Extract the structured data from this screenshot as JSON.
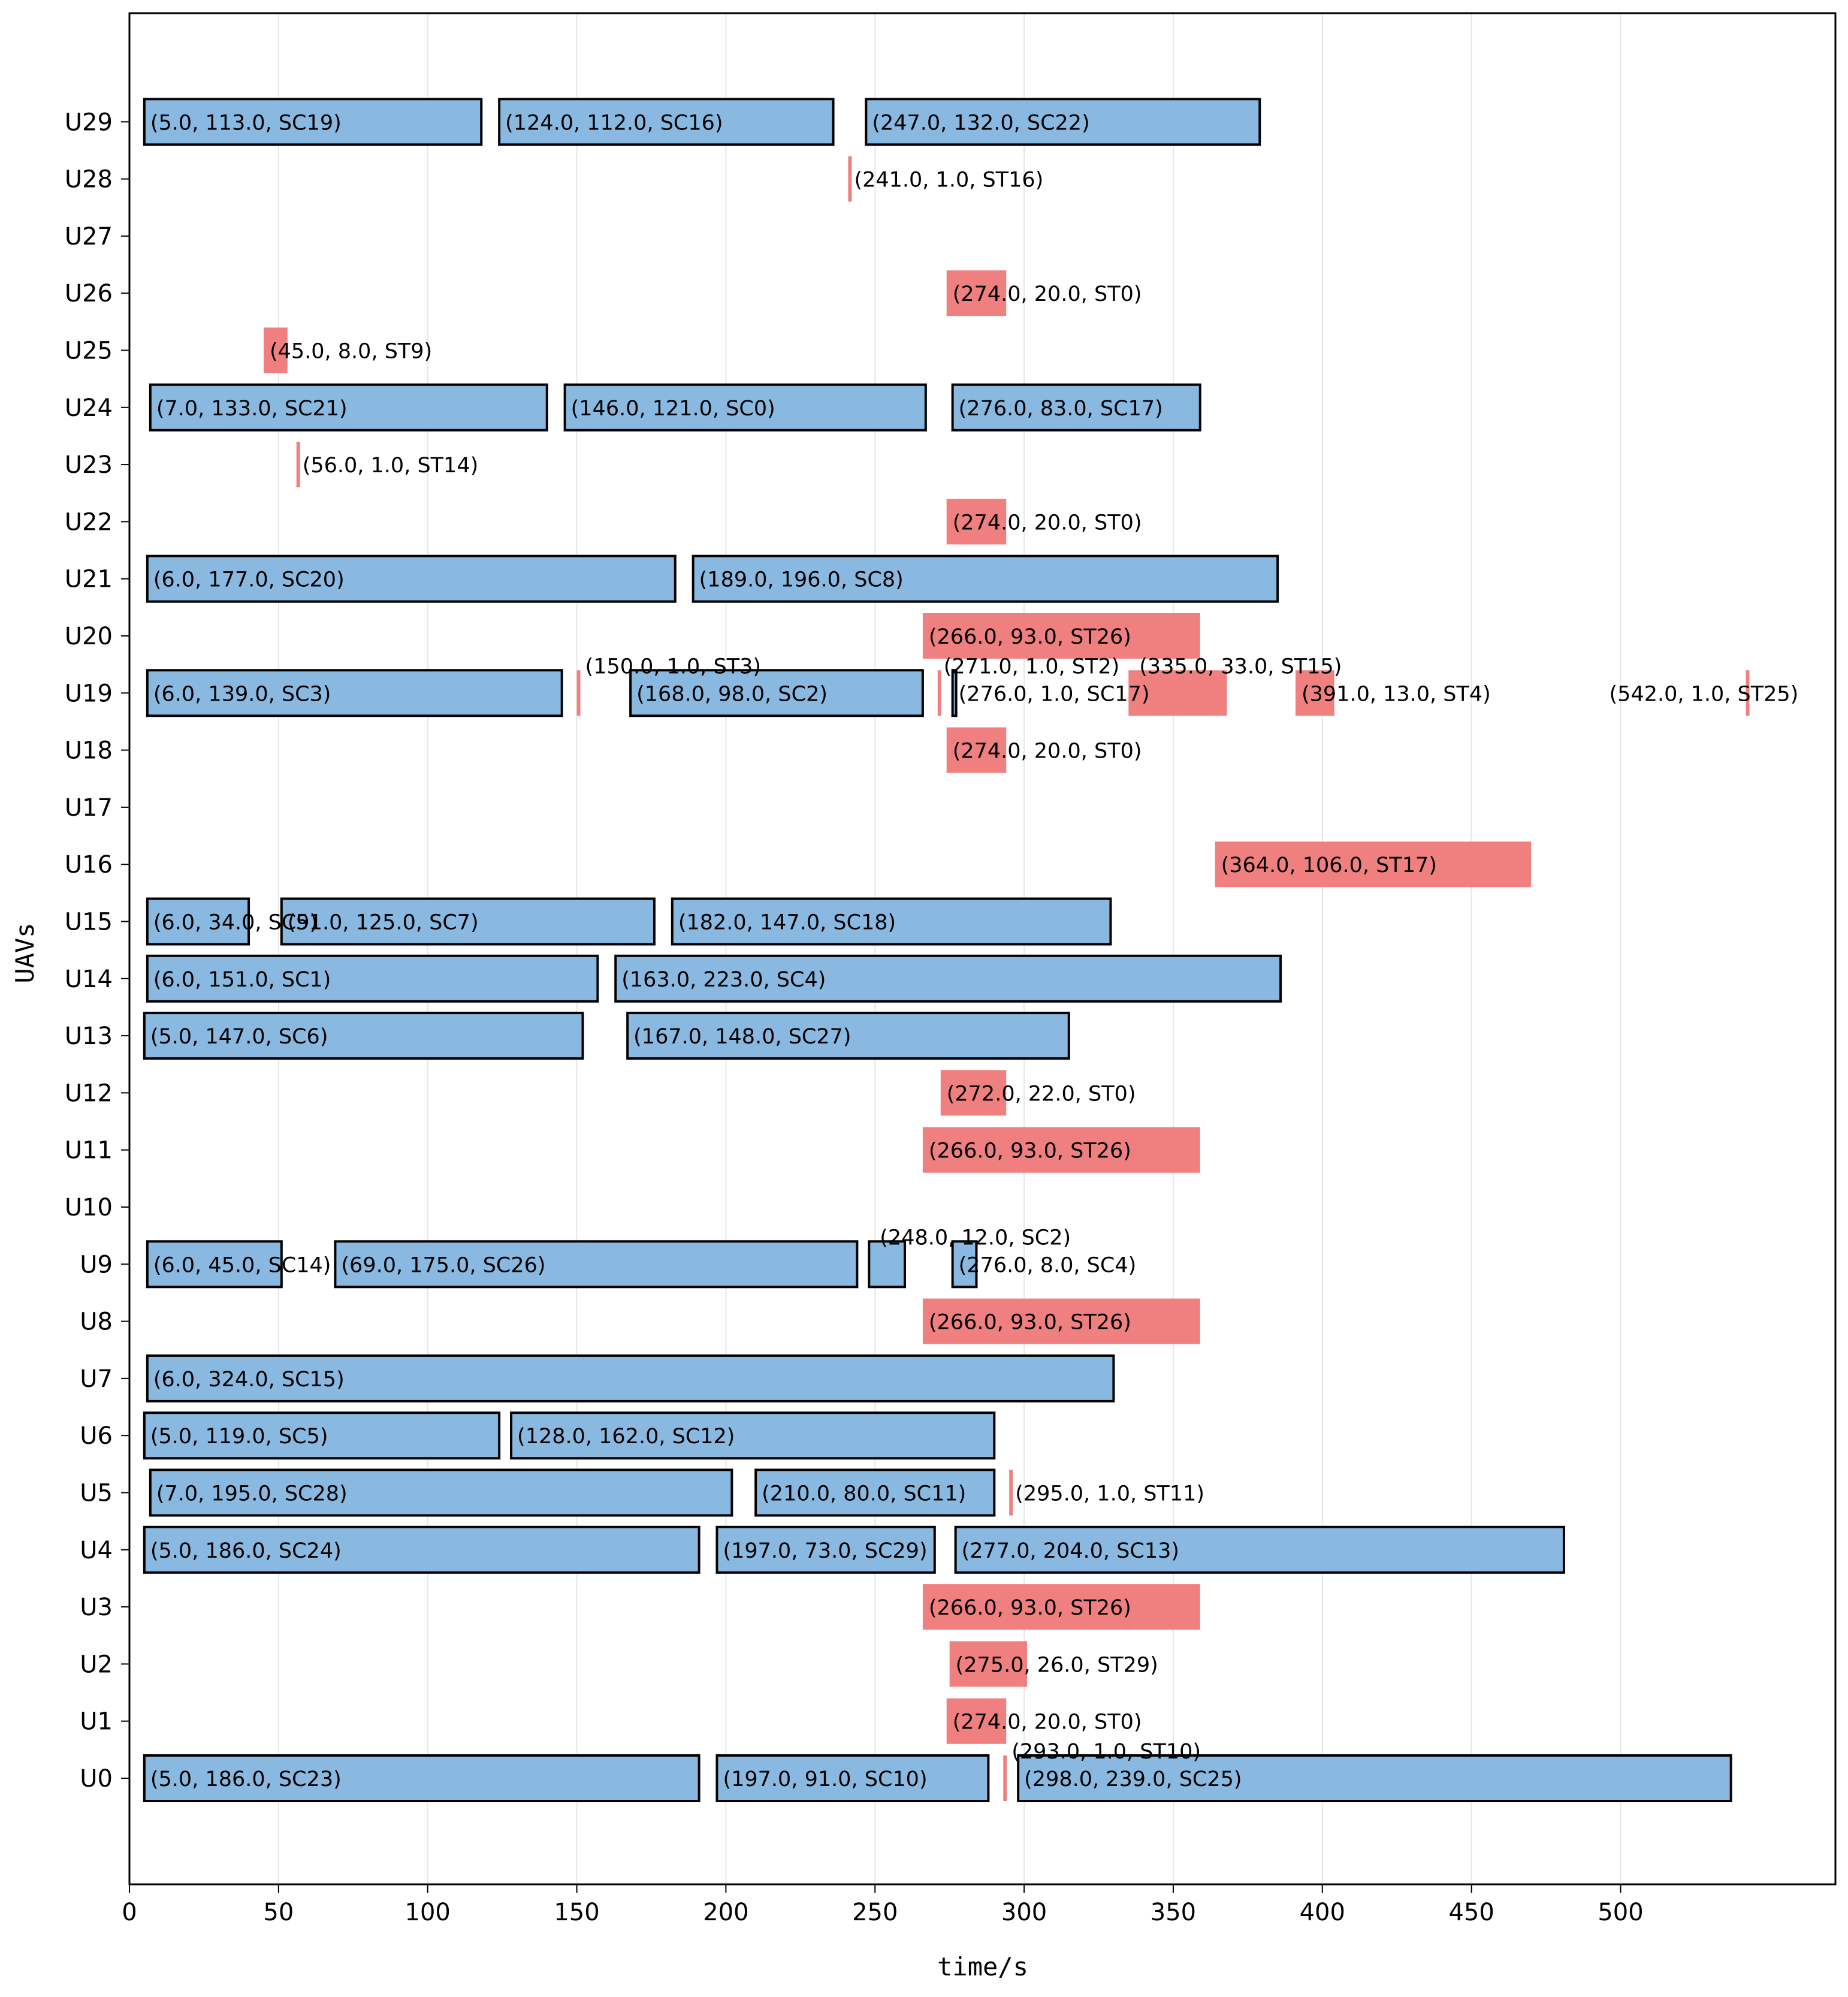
{
  "chart_data": {
    "type": "gantt",
    "title": "",
    "xlabel": "time/s",
    "ylabel": "UAVs",
    "xlim": [
      0,
      570
    ],
    "x_ticks": [
      0,
      50,
      100,
      150,
      200,
      250,
      300,
      350,
      400,
      450,
      500
    ],
    "grid": "vertical",
    "categories": [
      "U0",
      "U1",
      "U2",
      "U3",
      "U4",
      "U5",
      "U6",
      "U7",
      "U8",
      "U9",
      "U10",
      "U11",
      "U12",
      "U13",
      "U14",
      "U15",
      "U16",
      "U17",
      "U18",
      "U19",
      "U20",
      "U21",
      "U22",
      "U23",
      "U24",
      "U25",
      "U26",
      "U27",
      "U28",
      "U29"
    ],
    "colors": {
      "SC": "#89b8e0",
      "ST": "#f08080",
      "edge": "#000000",
      "grid": "#e6e6e6"
    },
    "tasks": [
      {
        "uav": "U0",
        "start": 5.0,
        "duration": 186.0,
        "task": "SC23",
        "kind": "SC",
        "label": "(5.0, 186.0, SC23)"
      },
      {
        "uav": "U0",
        "start": 197.0,
        "duration": 91.0,
        "task": "SC10",
        "kind": "SC",
        "label": "(197.0, 91.0, SC10)"
      },
      {
        "uav": "U0",
        "start": 293.0,
        "duration": 1.0,
        "task": "ST10",
        "kind": "ST",
        "label": "(293.0, 1.0, ST10)"
      },
      {
        "uav": "U0",
        "start": 298.0,
        "duration": 239.0,
        "task": "SC25",
        "kind": "SC",
        "label": "(298.0, 239.0, SC25)"
      },
      {
        "uav": "U1",
        "start": 274.0,
        "duration": 20.0,
        "task": "ST0",
        "kind": "ST",
        "label": "(274.0, 20.0, ST0)"
      },
      {
        "uav": "U2",
        "start": 275.0,
        "duration": 26.0,
        "task": "ST29",
        "kind": "ST",
        "label": "(275.0, 26.0, ST29)"
      },
      {
        "uav": "U3",
        "start": 266.0,
        "duration": 93.0,
        "task": "ST26",
        "kind": "ST",
        "label": "(266.0, 93.0, ST26)"
      },
      {
        "uav": "U4",
        "start": 5.0,
        "duration": 186.0,
        "task": "SC24",
        "kind": "SC",
        "label": "(5.0, 186.0, SC24)"
      },
      {
        "uav": "U4",
        "start": 197.0,
        "duration": 73.0,
        "task": "SC29",
        "kind": "SC",
        "label": "(197.0, 73.0, SC29)"
      },
      {
        "uav": "U4",
        "start": 277.0,
        "duration": 204.0,
        "task": "SC13",
        "kind": "SC",
        "label": "(277.0, 204.0, SC13)"
      },
      {
        "uav": "U5",
        "start": 7.0,
        "duration": 195.0,
        "task": "SC28",
        "kind": "SC",
        "label": "(7.0, 195.0, SC28)"
      },
      {
        "uav": "U5",
        "start": 210.0,
        "duration": 80.0,
        "task": "SC11",
        "kind": "SC",
        "label": "(210.0, 80.0, SC11)"
      },
      {
        "uav": "U5",
        "start": 295.0,
        "duration": 1.0,
        "task": "ST11",
        "kind": "ST",
        "label": "(295.0, 1.0, ST11)"
      },
      {
        "uav": "U6",
        "start": 5.0,
        "duration": 119.0,
        "task": "SC5",
        "kind": "SC",
        "label": "(5.0, 119.0, SC5)"
      },
      {
        "uav": "U6",
        "start": 128.0,
        "duration": 162.0,
        "task": "SC12",
        "kind": "SC",
        "label": "(128.0, 162.0, SC12)"
      },
      {
        "uav": "U7",
        "start": 6.0,
        "duration": 324.0,
        "task": "SC15",
        "kind": "SC",
        "label": "(6.0, 324.0, SC15)"
      },
      {
        "uav": "U8",
        "start": 266.0,
        "duration": 93.0,
        "task": "ST26",
        "kind": "ST",
        "label": "(266.0, 93.0, ST26)"
      },
      {
        "uav": "U9",
        "start": 6.0,
        "duration": 45.0,
        "task": "SC14",
        "kind": "SC",
        "label": "(6.0, 45.0, SC14)"
      },
      {
        "uav": "U9",
        "start": 69.0,
        "duration": 175.0,
        "task": "SC26",
        "kind": "SC",
        "label": "(69.0, 175.0, SC26)"
      },
      {
        "uav": "U9",
        "start": 248.0,
        "duration": 12.0,
        "task": "SC2",
        "kind": "SC",
        "label": "(248.0, 12.0, SC2)"
      },
      {
        "uav": "U9",
        "start": 276.0,
        "duration": 8.0,
        "task": "SC4",
        "kind": "SC",
        "label": "(276.0, 8.0, SC4)"
      },
      {
        "uav": "U11",
        "start": 266.0,
        "duration": 93.0,
        "task": "ST26",
        "kind": "ST",
        "label": "(266.0, 93.0, ST26)"
      },
      {
        "uav": "U12",
        "start": 272.0,
        "duration": 22.0,
        "task": "ST0",
        "kind": "ST",
        "label": "(272.0, 22.0, ST0)"
      },
      {
        "uav": "U13",
        "start": 5.0,
        "duration": 147.0,
        "task": "SC6",
        "kind": "SC",
        "label": "(5.0, 147.0, SC6)"
      },
      {
        "uav": "U13",
        "start": 167.0,
        "duration": 148.0,
        "task": "SC27",
        "kind": "SC",
        "label": "(167.0, 148.0, SC27)"
      },
      {
        "uav": "U14",
        "start": 6.0,
        "duration": 151.0,
        "task": "SC1",
        "kind": "SC",
        "label": "(6.0, 151.0, SC1)"
      },
      {
        "uav": "U14",
        "start": 163.0,
        "duration": 223.0,
        "task": "SC4",
        "kind": "SC",
        "label": "(163.0, 223.0, SC4)"
      },
      {
        "uav": "U15",
        "start": 6.0,
        "duration": 34.0,
        "task": "SC9",
        "kind": "SC",
        "label": "(6.0, 34.0, SC9)"
      },
      {
        "uav": "U15",
        "start": 51.0,
        "duration": 125.0,
        "task": "SC7",
        "kind": "SC",
        "label": "(51.0, 125.0, SC7)"
      },
      {
        "uav": "U15",
        "start": 182.0,
        "duration": 147.0,
        "task": "SC18",
        "kind": "SC",
        "label": "(182.0, 147.0, SC18)"
      },
      {
        "uav": "U16",
        "start": 364.0,
        "duration": 106.0,
        "task": "ST17",
        "kind": "ST",
        "label": "(364.0, 106.0, ST17)"
      },
      {
        "uav": "U18",
        "start": 274.0,
        "duration": 20.0,
        "task": "ST0",
        "kind": "ST",
        "label": "(274.0, 20.0, ST0)"
      },
      {
        "uav": "U19",
        "start": 6.0,
        "duration": 139.0,
        "task": "SC3",
        "kind": "SC",
        "label": "(6.0, 139.0, SC3)"
      },
      {
        "uav": "U19",
        "start": 150.0,
        "duration": 1.0,
        "task": "ST3",
        "kind": "ST",
        "label": "(150.0, 1.0, ST3)"
      },
      {
        "uav": "U19",
        "start": 168.0,
        "duration": 98.0,
        "task": "SC2",
        "kind": "SC",
        "label": "(168.0, 98.0, SC2)"
      },
      {
        "uav": "U19",
        "start": 271.0,
        "duration": 1.0,
        "task": "ST2",
        "kind": "ST",
        "label": "(271.0, 1.0, ST2)"
      },
      {
        "uav": "U19",
        "start": 276.0,
        "duration": 1.0,
        "task": "SC17",
        "kind": "SC",
        "label": "(276.0, 1.0, SC17)"
      },
      {
        "uav": "U19",
        "start": 335.0,
        "duration": 33.0,
        "task": "ST15",
        "kind": "ST",
        "label": "(335.0, 33.0, ST15)"
      },
      {
        "uav": "U19",
        "start": 391.0,
        "duration": 13.0,
        "task": "ST4",
        "kind": "ST",
        "label": "(391.0, 13.0, ST4)"
      },
      {
        "uav": "U19",
        "start": 542.0,
        "duration": 1.0,
        "task": "ST25",
        "kind": "ST",
        "label": "(542.0, 1.0, ST25)"
      },
      {
        "uav": "U20",
        "start": 266.0,
        "duration": 93.0,
        "task": "ST26",
        "kind": "ST",
        "label": "(266.0, 93.0, ST26)"
      },
      {
        "uav": "U21",
        "start": 6.0,
        "duration": 177.0,
        "task": "SC20",
        "kind": "SC",
        "label": "(6.0, 177.0, SC20)"
      },
      {
        "uav": "U21",
        "start": 189.0,
        "duration": 196.0,
        "task": "SC8",
        "kind": "SC",
        "label": "(189.0, 196.0, SC8)"
      },
      {
        "uav": "U22",
        "start": 274.0,
        "duration": 20.0,
        "task": "ST0",
        "kind": "ST",
        "label": "(274.0, 20.0, ST0)"
      },
      {
        "uav": "U23",
        "start": 56.0,
        "duration": 1.0,
        "task": "ST14",
        "kind": "ST",
        "label": "(56.0, 1.0, ST14)"
      },
      {
        "uav": "U24",
        "start": 7.0,
        "duration": 133.0,
        "task": "SC21",
        "kind": "SC",
        "label": "(7.0, 133.0, SC21)"
      },
      {
        "uav": "U24",
        "start": 146.0,
        "duration": 121.0,
        "task": "SC0",
        "kind": "SC",
        "label": "(146.0, 121.0, SC0)"
      },
      {
        "uav": "U24",
        "start": 276.0,
        "duration": 83.0,
        "task": "SC17",
        "kind": "SC",
        "label": "(276.0, 83.0, SC17)"
      },
      {
        "uav": "U25",
        "start": 45.0,
        "duration": 8.0,
        "task": "ST9",
        "kind": "ST",
        "label": "(45.0, 8.0, ST9)"
      },
      {
        "uav": "U26",
        "start": 274.0,
        "duration": 20.0,
        "task": "ST0",
        "kind": "ST",
        "label": "(274.0, 20.0, ST0)"
      },
      {
        "uav": "U28",
        "start": 241.0,
        "duration": 1.0,
        "task": "ST16",
        "kind": "ST",
        "label": "(241.0, 1.0, ST16)"
      },
      {
        "uav": "U29",
        "start": 5.0,
        "duration": 113.0,
        "task": "SC19",
        "kind": "SC",
        "label": "(5.0, 113.0, SC19)"
      },
      {
        "uav": "U29",
        "start": 124.0,
        "duration": 112.0,
        "task": "SC16",
        "kind": "SC",
        "label": "(124.0, 112.0, SC16)"
      },
      {
        "uav": "U29",
        "start": 247.0,
        "duration": 132.0,
        "task": "SC22",
        "kind": "SC",
        "label": "(247.0, 132.0, SC22)"
      }
    ]
  }
}
